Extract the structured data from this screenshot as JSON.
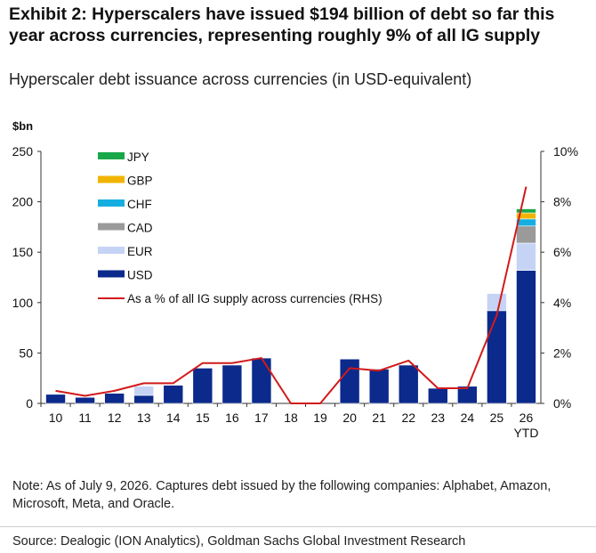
{
  "title": "Exhibit 2: Hyperscalers have issued $194 billion of debt so far this year across currencies, representing roughly 9% of all IG supply",
  "subtitle": "Hyperscaler debt issuance across currencies (in USD-equivalent)",
  "note": "Note: As of July 9, 2026. Captures debt issued by the following companies: Alphabet, Amazon, Microsoft, Meta, and Oracle.",
  "source": "Source: Dealogic (ION Analytics), Goldman Sachs Global Investment Research",
  "chart_data": {
    "type": "bar",
    "stacked": true,
    "y_left_label": "$bn",
    "ylim": [
      0,
      250
    ],
    "y_ticks": [
      0,
      50,
      100,
      150,
      200,
      250
    ],
    "y2lim": [
      0,
      10
    ],
    "y2_ticks": [
      "0%",
      "2%",
      "4%",
      "6%",
      "8%",
      "10%"
    ],
    "legend_position": "top-left",
    "categories": [
      "10",
      "11",
      "12",
      "13",
      "14",
      "15",
      "16",
      "17",
      "18",
      "19",
      "20",
      "21",
      "22",
      "23",
      "24",
      "25",
      "26"
    ],
    "category_sublabels": {
      "26": "YTD"
    },
    "series": [
      {
        "name": "USD",
        "color": "#0b2a8c",
        "values": [
          9,
          6,
          10,
          8,
          18,
          35,
          38,
          45,
          0,
          0,
          44,
          34,
          38,
          15,
          17,
          92,
          132
        ]
      },
      {
        "name": "EUR",
        "color": "#c5d3f5",
        "values": [
          0,
          0,
          0,
          9,
          0,
          0,
          0,
          0,
          0,
          0,
          0,
          0,
          0,
          0,
          0,
          17,
          27
        ]
      },
      {
        "name": "CAD",
        "color": "#9a9a9a",
        "values": [
          0,
          0,
          0,
          0,
          0,
          0,
          0,
          0,
          0,
          0,
          0,
          0,
          0,
          0,
          0,
          0,
          17
        ]
      },
      {
        "name": "CHF",
        "color": "#16aee0",
        "values": [
          0,
          0,
          0,
          0,
          0,
          0,
          0,
          0,
          0,
          0,
          0,
          0,
          0,
          0,
          0,
          0,
          7
        ]
      },
      {
        "name": "GBP",
        "color": "#f0b400",
        "values": [
          0,
          0,
          0,
          0,
          0,
          0,
          0,
          0,
          0,
          0,
          0,
          0,
          0,
          0,
          0,
          0,
          6
        ]
      },
      {
        "name": "JPY",
        "color": "#18a84a",
        "values": [
          0,
          0,
          0,
          0,
          0,
          0,
          0,
          0,
          0,
          0,
          0,
          0,
          0,
          0,
          0,
          0,
          4
        ]
      }
    ],
    "line_series": {
      "name": "As a % of all IG supply across currencies (RHS)",
      "color": "#d11a1a",
      "axis": "right",
      "values": [
        0.5,
        0.3,
        0.5,
        0.8,
        0.8,
        1.6,
        1.6,
        1.8,
        0,
        0,
        1.4,
        1.3,
        1.7,
        0.6,
        0.6,
        3.5,
        8.6
      ]
    },
    "legend_order": [
      "JPY",
      "GBP",
      "CHF",
      "CAD",
      "EUR",
      "USD",
      "line"
    ]
  }
}
